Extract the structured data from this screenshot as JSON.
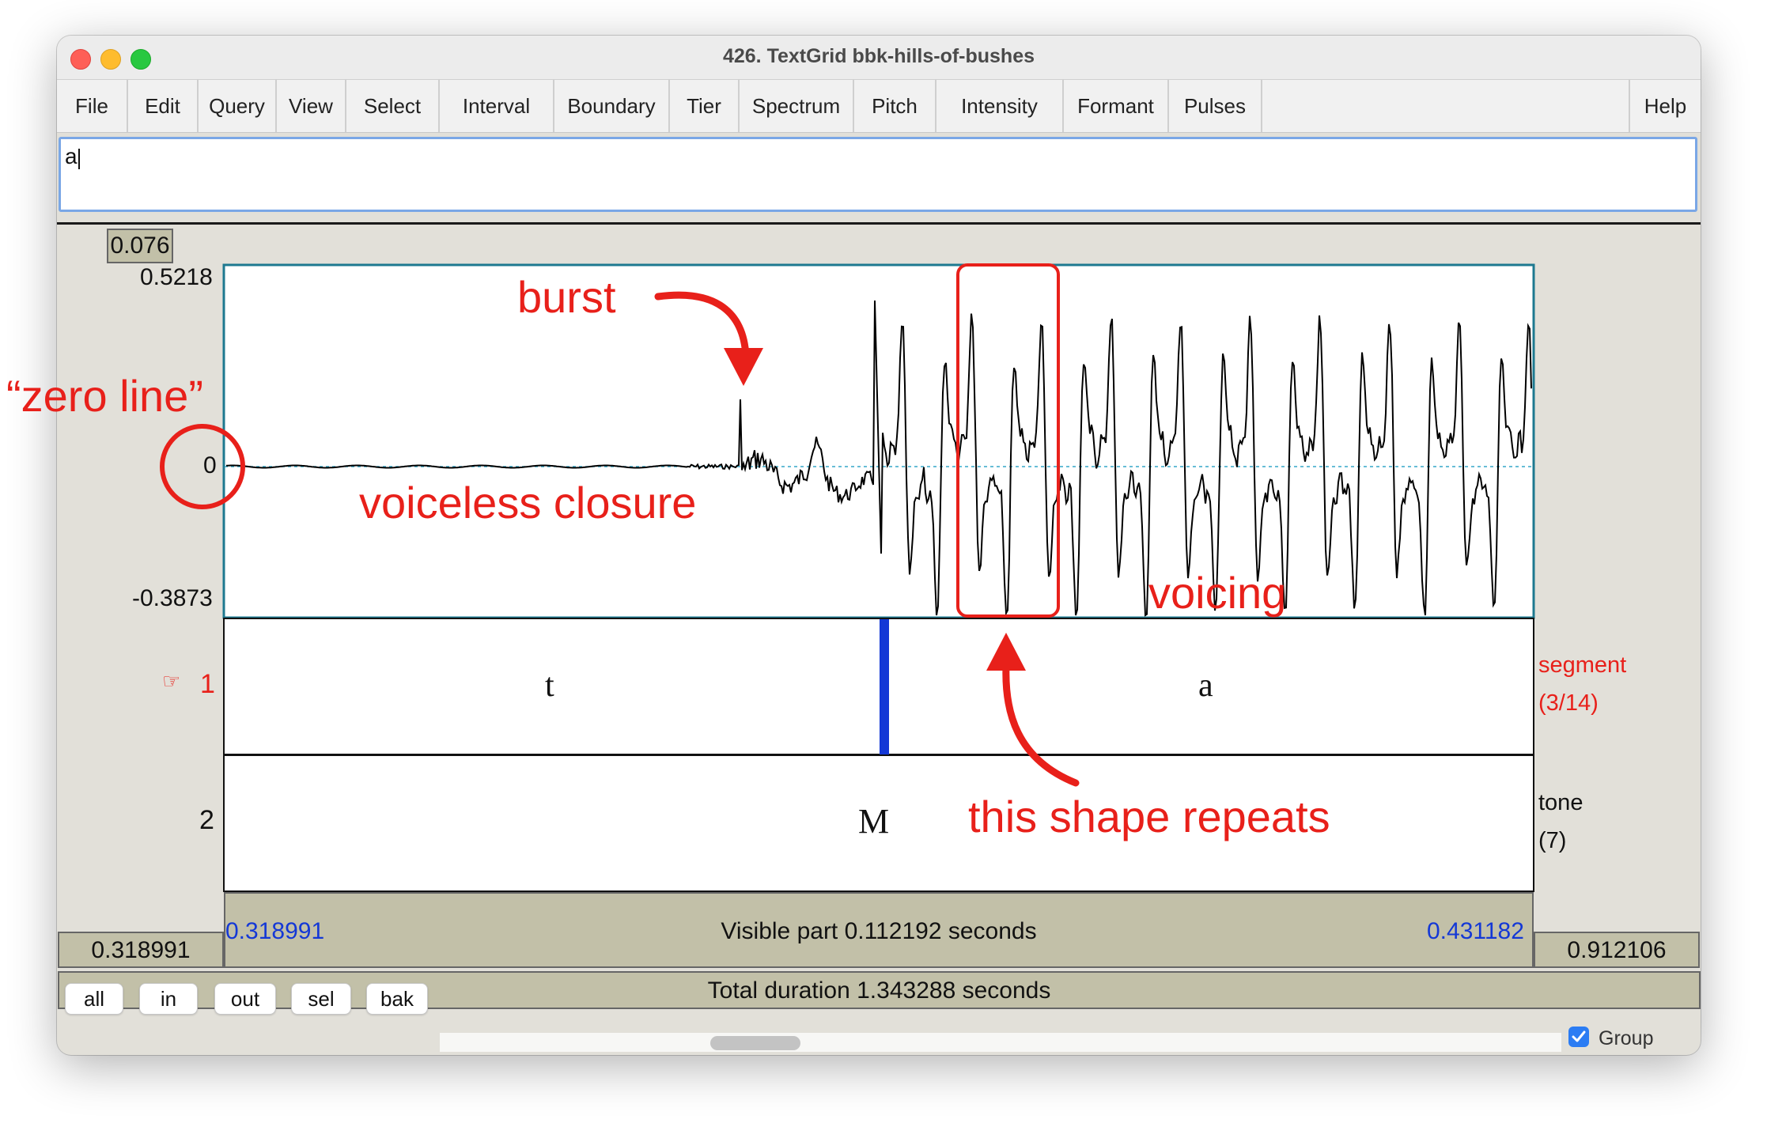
{
  "window": {
    "title": "426. TextGrid bbk-hills-of-bushes"
  },
  "menu": [
    "File",
    "Edit",
    "Query",
    "View",
    "Select",
    "Interval",
    "Boundary",
    "Tier",
    "Spectrum",
    "Pitch",
    "Intensity",
    "Formant",
    "Pulses"
  ],
  "menu_help": "Help",
  "text_field": {
    "value": "a"
  },
  "cursor_value": "0.076",
  "waveform": {
    "y_max": "0.5218",
    "y_zero": "0",
    "y_min": "-0.3873"
  },
  "tiers": [
    {
      "number": "1",
      "pointer": "☞",
      "name": "segment",
      "count": "(3/14)",
      "labels": [
        "t",
        "a"
      ]
    },
    {
      "number": "2",
      "name": "tone",
      "count": "(7)",
      "labels": [
        "M"
      ]
    }
  ],
  "time": {
    "left_outer": "0.318991",
    "left_visible": "0.318991",
    "visible_part": "Visible part 0.112192 seconds",
    "right_visible": "0.431182",
    "right_outer": "0.912106",
    "total_duration": "Total duration 1.343288 seconds"
  },
  "buttons": [
    "all",
    "in",
    "out",
    "sel",
    "bak"
  ],
  "group": {
    "label": "Group",
    "checked": true
  },
  "annotations": {
    "zero_line": "“zero line”",
    "burst": "burst",
    "voiceless_closure": "voiceless closure",
    "voicing": "voicing",
    "repeats": "this shape repeats"
  },
  "colors": {
    "annotation": "#e8201a",
    "boundary": "#1438d6",
    "time_label": "#1438d6",
    "focus": "#7aa7e6"
  }
}
